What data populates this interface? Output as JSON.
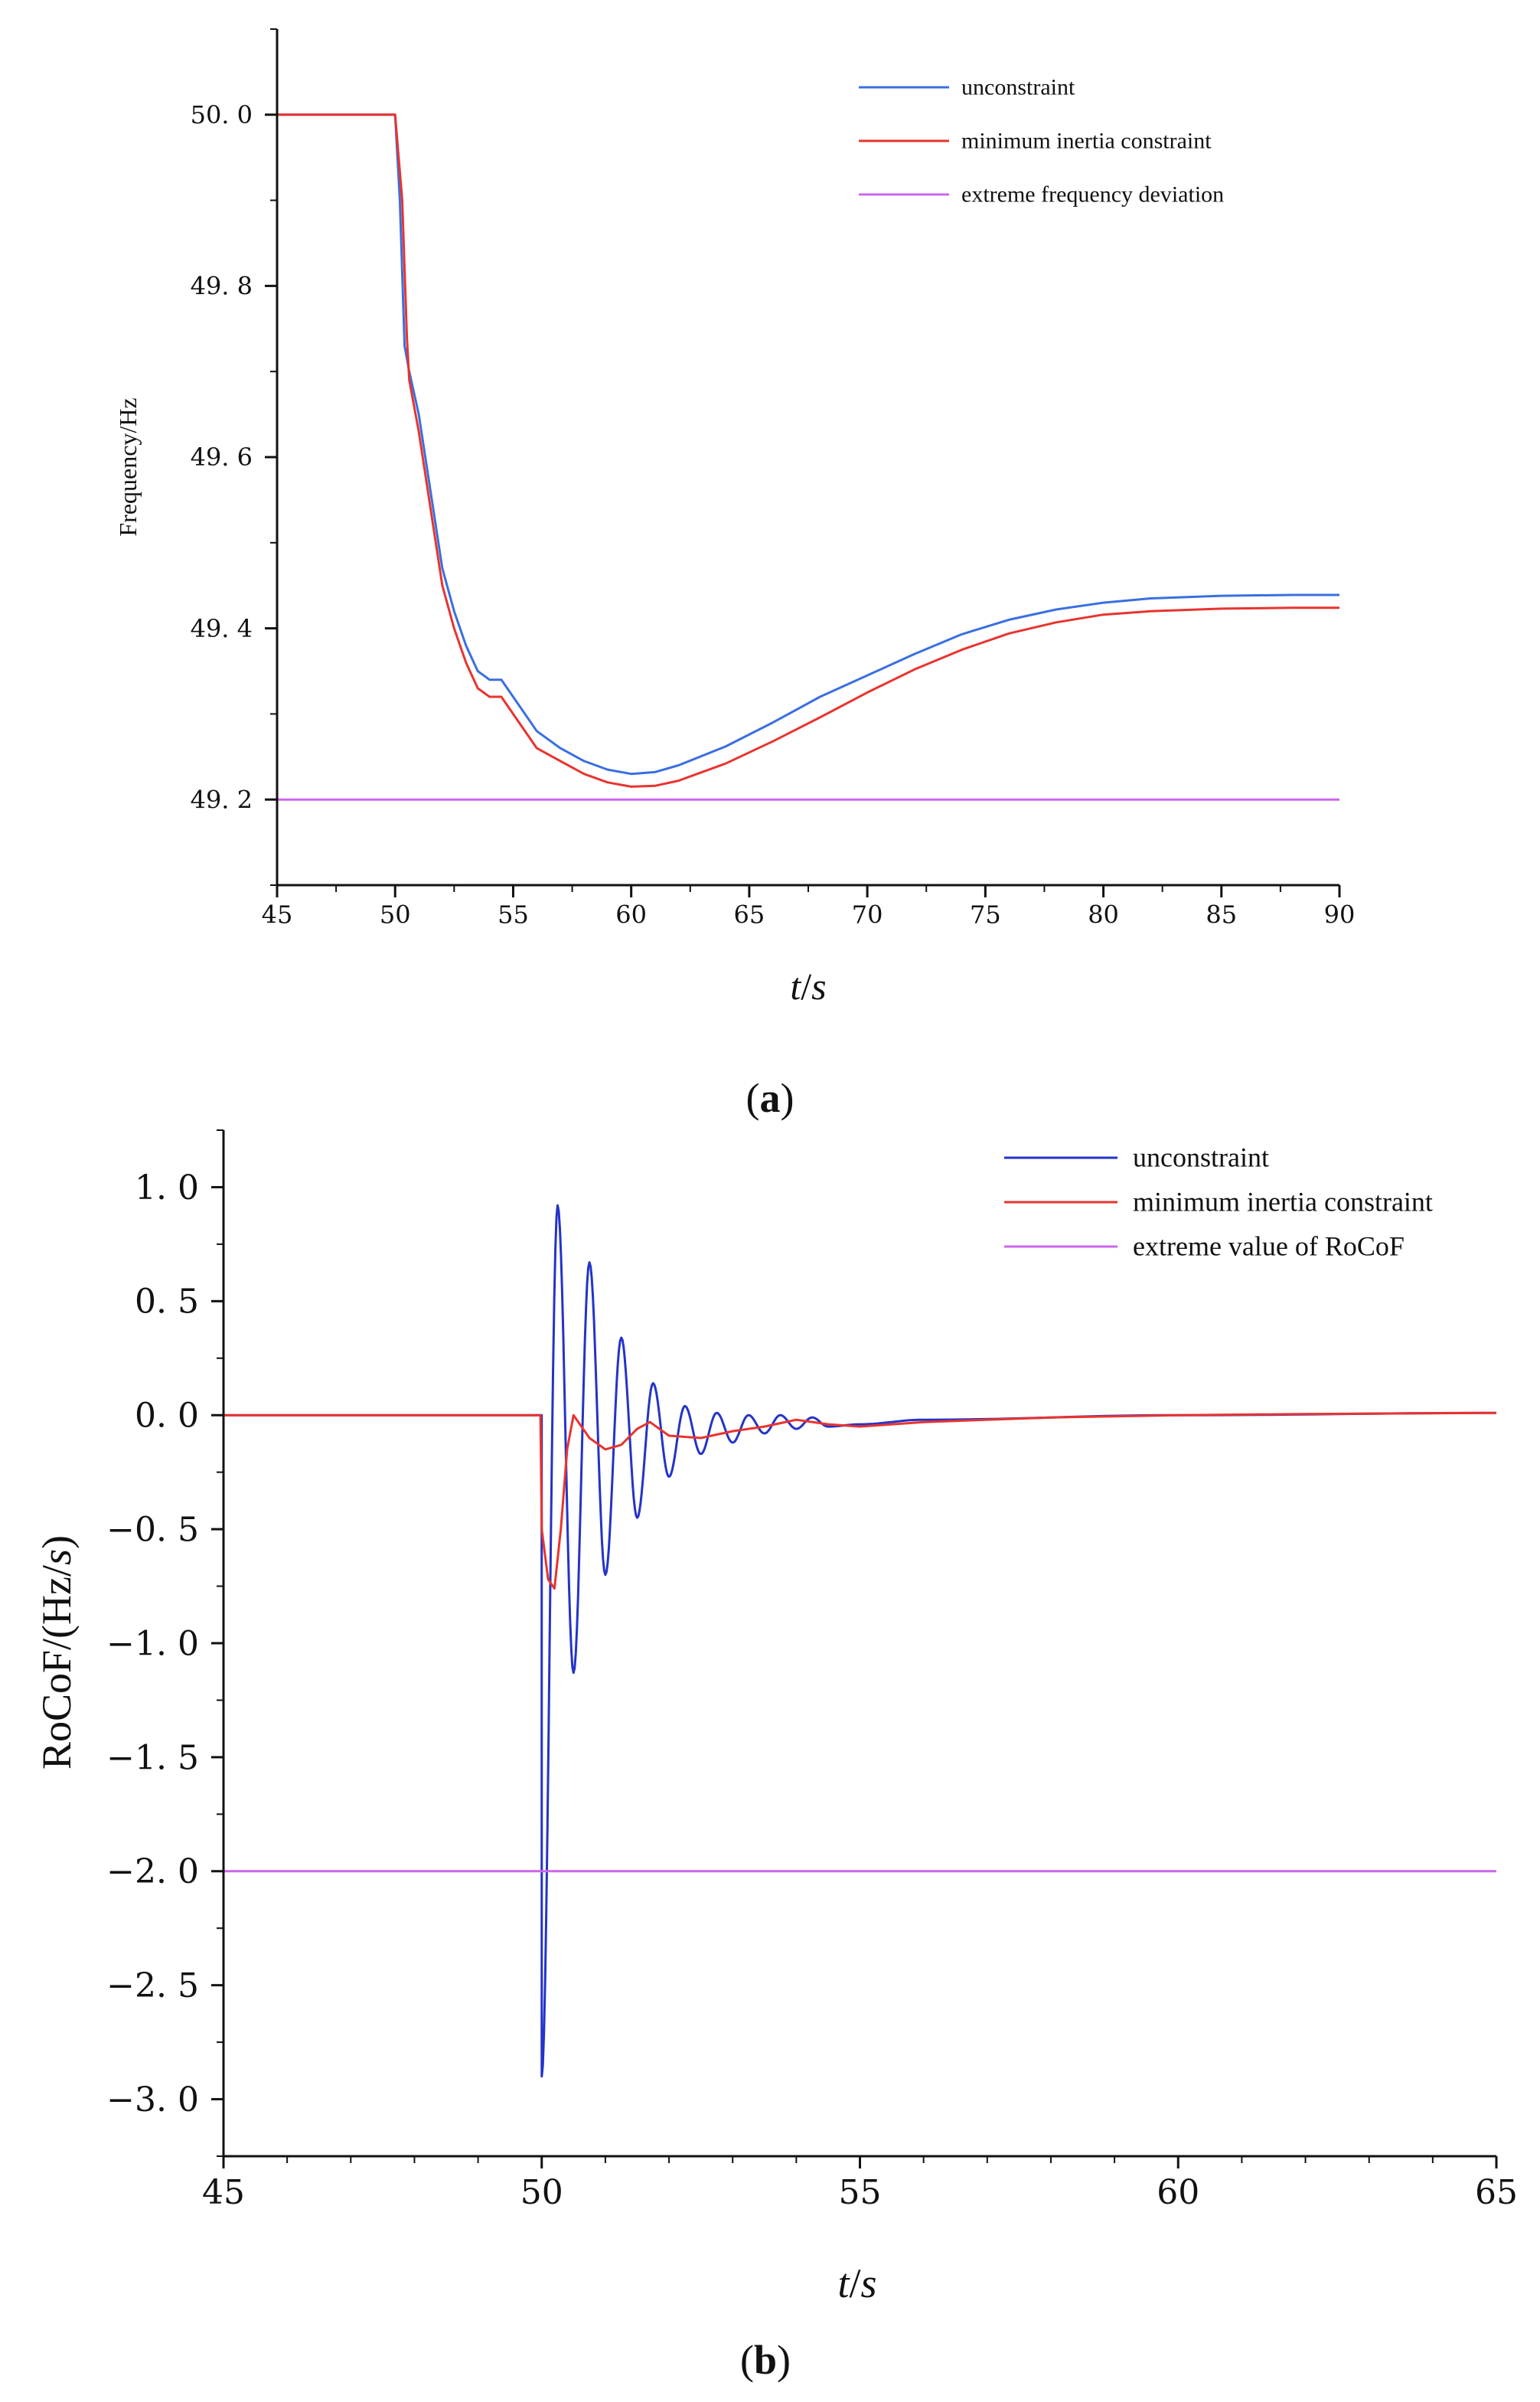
{
  "panel_labels": {
    "a": "a",
    "b": "b"
  },
  "chart_data": [
    {
      "id": "a",
      "type": "line",
      "title": "",
      "xlabel": {
        "italic": "t",
        "rest": "/",
        "italic2": "s"
      },
      "ylabel": "Frequency/Hz",
      "xlim": [
        45,
        90
      ],
      "ylim": [
        49.1,
        50.1
      ],
      "xticks": [
        45,
        50,
        55,
        60,
        65,
        70,
        75,
        80,
        85,
        90
      ],
      "xtick_labels": [
        "45",
        "50",
        "55",
        "60",
        "65",
        "70",
        "75",
        "80",
        "85",
        "90"
      ],
      "yticks": [
        49.2,
        49.4,
        49.6,
        49.8,
        50.0
      ],
      "ytick_labels": [
        "49. 2",
        "49. 4",
        "49. 6",
        "49. 8",
        "50. 0"
      ],
      "legend_position": "top-right",
      "series": [
        {
          "name": "unconstraint",
          "color": "#3a6fe0",
          "points": [
            [
              45,
              50.0
            ],
            [
              50.0,
              50.0
            ],
            [
              50.2,
              49.9
            ],
            [
              50.4,
              49.73
            ],
            [
              50.6,
              49.7
            ],
            [
              51.0,
              49.65
            ],
            [
              51.5,
              49.56
            ],
            [
              52.0,
              49.47
            ],
            [
              52.5,
              49.42
            ],
            [
              53.0,
              49.38
            ],
            [
              53.5,
              49.35
            ],
            [
              54.0,
              49.34
            ],
            [
              54.5,
              49.34
            ],
            [
              55.0,
              49.32
            ],
            [
              56.0,
              49.28
            ],
            [
              57.0,
              49.26
            ],
            [
              58.0,
              49.245
            ],
            [
              59.0,
              49.235
            ],
            [
              60.0,
              49.23
            ],
            [
              61.0,
              49.232
            ],
            [
              62.0,
              49.24
            ],
            [
              64.0,
              49.262
            ],
            [
              66.0,
              49.29
            ],
            [
              68.0,
              49.32
            ],
            [
              70.0,
              49.345
            ],
            [
              72.0,
              49.37
            ],
            [
              74.0,
              49.393
            ],
            [
              76.0,
              49.41
            ],
            [
              78.0,
              49.422
            ],
            [
              80.0,
              49.43
            ],
            [
              82.0,
              49.435
            ],
            [
              85.0,
              49.438
            ],
            [
              88.0,
              49.439
            ],
            [
              90.0,
              49.439
            ]
          ]
        },
        {
          "name": "minimum inertia constraint",
          "color": "#e8342f",
          "points": [
            [
              45,
              50.0
            ],
            [
              50.0,
              50.0
            ],
            [
              50.3,
              49.9
            ],
            [
              50.5,
              49.74
            ],
            [
              50.6,
              49.69
            ],
            [
              51.0,
              49.63
            ],
            [
              51.5,
              49.54
            ],
            [
              52.0,
              49.45
            ],
            [
              52.5,
              49.4
            ],
            [
              53.0,
              49.36
            ],
            [
              53.5,
              49.33
            ],
            [
              54.0,
              49.32
            ],
            [
              54.5,
              49.32
            ],
            [
              55.0,
              49.3
            ],
            [
              56.0,
              49.26
            ],
            [
              57.0,
              49.245
            ],
            [
              58.0,
              49.23
            ],
            [
              59.0,
              49.22
            ],
            [
              60.0,
              49.215
            ],
            [
              61.0,
              49.216
            ],
            [
              62.0,
              49.222
            ],
            [
              64.0,
              49.242
            ],
            [
              66.0,
              49.268
            ],
            [
              68.0,
              49.296
            ],
            [
              70.0,
              49.325
            ],
            [
              72.0,
              49.352
            ],
            [
              74.0,
              49.375
            ],
            [
              76.0,
              49.394
            ],
            [
              78.0,
              49.407
            ],
            [
              80.0,
              49.416
            ],
            [
              82.0,
              49.42
            ],
            [
              85.0,
              49.423
            ],
            [
              88.0,
              49.424
            ],
            [
              90.0,
              49.424
            ]
          ]
        },
        {
          "name": "extreme frequency deviation",
          "color": "#cc66ee",
          "points": [
            [
              45,
              49.2
            ],
            [
              90,
              49.2
            ]
          ]
        }
      ]
    },
    {
      "id": "b",
      "type": "line",
      "title": "",
      "xlabel": {
        "italic": "t",
        "rest": "/",
        "italic2": "s"
      },
      "ylabel": {
        "prefix": "RoCoF/(Hz/",
        "italic": "s",
        "suffix": ")"
      },
      "xlim": [
        45,
        65
      ],
      "ylim": [
        -3.25,
        1.25
      ],
      "xticks": [
        45,
        50,
        55,
        60,
        65
      ],
      "xtick_labels": [
        "45",
        "50",
        "55",
        "60",
        "65"
      ],
      "yticks": [
        -3.0,
        -2.5,
        -2.0,
        -1.5,
        -1.0,
        -0.5,
        0.0,
        0.5,
        1.0
      ],
      "ytick_labels": [
        "−3. 0",
        "−2. 5",
        "−2. 0",
        "−1. 5",
        "−1. 0",
        "−0. 5",
        "0. 0",
        "0. 5",
        "1. 0"
      ],
      "legend_position": "top-right",
      "series": [
        {
          "name": "unconstraint",
          "color": "#2433c8",
          "model": "damped",
          "t0": 50.0,
          "preValue": 0.0,
          "dropTo": -2.9,
          "mean": -0.05,
          "peaks": [
            [
              50.0,
              -2.9
            ],
            [
              50.25,
              0.92
            ],
            [
              50.5,
              -1.13
            ],
            [
              50.75,
              0.67
            ],
            [
              51.0,
              -0.7
            ],
            [
              51.25,
              0.34
            ],
            [
              51.5,
              -0.45
            ],
            [
              51.75,
              0.14
            ],
            [
              52.0,
              -0.27
            ],
            [
              52.25,
              0.04
            ],
            [
              52.5,
              -0.17
            ],
            [
              52.75,
              0.01
            ],
            [
              53.0,
              -0.12
            ],
            [
              53.25,
              0.0
            ],
            [
              53.5,
              -0.08
            ],
            [
              53.75,
              0.0
            ],
            [
              54.0,
              -0.06
            ],
            [
              54.25,
              -0.01
            ],
            [
              54.5,
              -0.05
            ],
            [
              55.0,
              -0.04
            ],
            [
              56.0,
              -0.02
            ],
            [
              60.0,
              0.0
            ],
            [
              65.0,
              0.01
            ]
          ]
        },
        {
          "name": "minimum inertia constraint",
          "color": "#e8342f",
          "points": [
            [
              45,
              0.0
            ],
            [
              49.98,
              0.0
            ],
            [
              50.0,
              -0.5
            ],
            [
              50.1,
              -0.72
            ],
            [
              50.2,
              -0.76
            ],
            [
              50.3,
              -0.5
            ],
            [
              50.4,
              -0.15
            ],
            [
              50.5,
              0.0
            ],
            [
              50.6,
              -0.04
            ],
            [
              50.75,
              -0.1
            ],
            [
              51.0,
              -0.15
            ],
            [
              51.25,
              -0.13
            ],
            [
              51.5,
              -0.06
            ],
            [
              51.7,
              -0.03
            ],
            [
              52.0,
              -0.09
            ],
            [
              52.5,
              -0.1
            ],
            [
              53.0,
              -0.07
            ],
            [
              53.5,
              -0.05
            ],
            [
              54.0,
              -0.02
            ],
            [
              54.5,
              -0.04
            ],
            [
              55.0,
              -0.05
            ],
            [
              56.0,
              -0.03
            ],
            [
              58.0,
              -0.01
            ],
            [
              60.0,
              0.0
            ],
            [
              62.0,
              0.005
            ],
            [
              65.0,
              0.01
            ]
          ]
        },
        {
          "name": "extreme value of RoCoF",
          "color": "#cc66ee",
          "points": [
            [
              45,
              -2.0
            ],
            [
              65,
              -2.0
            ]
          ]
        }
      ]
    }
  ]
}
